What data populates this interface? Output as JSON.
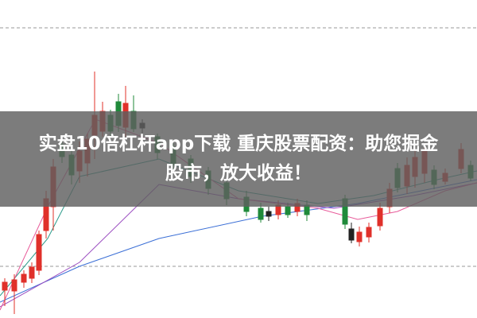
{
  "banner": {
    "lines": [
      "实盘10倍杠杆app下载 重庆股票配资：助您掘金",
      "股市，放大收益！"
    ]
  }
}
